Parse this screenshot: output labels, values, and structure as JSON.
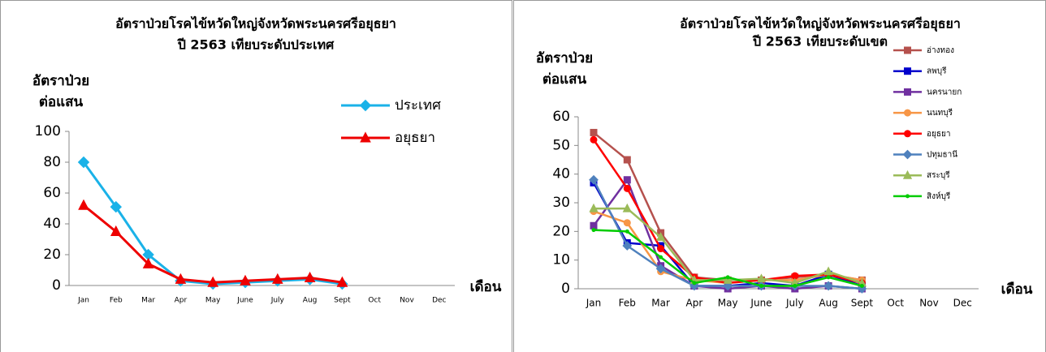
{
  "chart_data": [
    {
      "type": "line",
      "title": "อัตราป่วยโรคไข้หวัดใหญ่จังหวัดพระนครศรีอยุธยา",
      "subtitle": "ปี 2563 เทียบระดับประเทศ",
      "ylabel": [
        "อัตราป่วย",
        "ต่อแสน"
      ],
      "xlabel": "เดือน",
      "categories": [
        "Jan",
        "Feb",
        "Mar",
        "Apr",
        "May",
        "June",
        "July",
        "Aug",
        "Sept",
        "Oct",
        "Nov",
        "Dec"
      ],
      "ylim": [
        0,
        100
      ],
      "yticks": [
        0,
        20,
        40,
        60,
        80,
        100
      ],
      "series": [
        {
          "name": "ประเทศ",
          "color": "#1ab2e8",
          "marker": "diamond",
          "values": [
            80,
            51,
            20,
            3,
            1,
            2,
            3,
            4,
            1,
            null,
            null,
            null
          ]
        },
        {
          "name": "อยุธยา",
          "color": "#ee0000",
          "marker": "triangle",
          "values": [
            52,
            35,
            14,
            4,
            2,
            3,
            4,
            5,
            2,
            null,
            null,
            null
          ]
        }
      ]
    },
    {
      "type": "line",
      "title": "อัตราป่วยโรคไข้หวัดใหญ่จังหวัดพระนครศรีอยุธยา",
      "subtitle": "ปี 2563 เทียบระดับเขต",
      "ylabel": [
        "อัตราป่วย",
        "ต่อแสน"
      ],
      "xlabel": "เดือน",
      "categories": [
        "Jan",
        "Feb",
        "Mar",
        "Apr",
        "May",
        "June",
        "July",
        "Aug",
        "Sept",
        "Oct",
        "Nov",
        "Dec"
      ],
      "ylim": [
        0,
        60
      ],
      "yticks": [
        0,
        10,
        20,
        30,
        40,
        50,
        60
      ],
      "series": [
        {
          "name": "อ่างทอง",
          "color": "#b5514d",
          "marker": "square",
          "values": [
            54.5,
            45,
            19.5,
            4,
            3,
            3,
            4,
            5,
            3,
            null,
            null,
            null
          ]
        },
        {
          "name": "ลพบุรี",
          "color": "#0000cc",
          "marker": "square",
          "values": [
            37,
            16,
            15,
            1,
            1,
            2,
            1,
            5,
            1,
            null,
            null,
            null
          ]
        },
        {
          "name": "นครนายก",
          "color": "#7030a0",
          "marker": "square",
          "values": [
            22,
            38,
            8,
            1,
            0,
            1,
            0,
            1,
            0,
            null,
            null,
            null
          ]
        },
        {
          "name": "นนทบุรี",
          "color": "#f79646",
          "marker": "circle",
          "values": [
            27,
            23,
            6,
            3,
            2,
            3,
            3,
            5,
            3,
            null,
            null,
            null
          ]
        },
        {
          "name": "อยุธยา",
          "color": "#ff0000",
          "marker": "circle",
          "values": [
            52,
            35,
            14,
            4,
            2,
            3,
            4.5,
            5,
            2,
            null,
            null,
            null
          ]
        },
        {
          "name": "ปทุมธานี",
          "color": "#4f81bd",
          "marker": "diamond",
          "values": [
            38,
            15,
            7,
            1,
            1,
            1,
            1,
            1,
            0,
            null,
            null,
            null
          ]
        },
        {
          "name": "สระบุรี",
          "color": "#9bbb59",
          "marker": "triangle",
          "values": [
            28,
            28,
            18,
            3,
            3,
            3.5,
            2,
            6,
            2,
            null,
            null,
            null
          ]
        },
        {
          "name": "สิงห์บุรี",
          "color": "#00cc00",
          "marker": "dot",
          "values": [
            20.5,
            20,
            11,
            2,
            4,
            1,
            1,
            4,
            1,
            null,
            null,
            null
          ]
        }
      ]
    }
  ]
}
